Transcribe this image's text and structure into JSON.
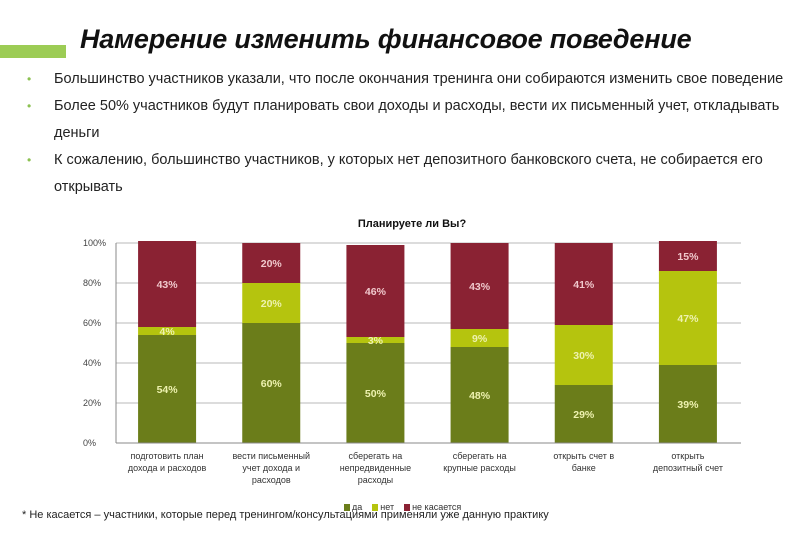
{
  "slide": {
    "title": "Намерение изменить финансовое поведение",
    "accent_color": "#9ccc55",
    "bullets": [
      "Большинство участников указали, что после окончания тренинга они собираются изменить свое поведение",
      "Более 50% участников будут планировать свои  доходы и расходы, вести их письменный учет, откладывать деньги",
      "К сожалению, большинство участников, у которых нет депозитного банковского счета, не собирается  его открывать"
    ],
    "bullet_glyph": "•",
    "footnote": "* Не касается – участники, которые перед тренингом/консультациями применяли уже данную практику"
  },
  "chart_data": {
    "type": "bar",
    "stacked": true,
    "title": "Планируете ли Вы?",
    "xlabel": "",
    "ylabel": "",
    "ylim": [
      0,
      100
    ],
    "y_ticks": [
      "0%",
      "20%",
      "40%",
      "60%",
      "80%",
      "100%"
    ],
    "y_tick_values": [
      0,
      20,
      40,
      60,
      80,
      100
    ],
    "grid": true,
    "legend_position": "bottom",
    "categories": [
      [
        "подготовить план",
        "дохода и расходов"
      ],
      [
        "вести письменный",
        "учет дохода и",
        "расходов"
      ],
      [
        "сберегать на",
        "непредвиденные",
        "расходы"
      ],
      [
        "сберегать на",
        "крупные расходы"
      ],
      [
        "открыть счет в",
        "банке"
      ],
      [
        "открыть",
        "депозитный счет"
      ]
    ],
    "series": [
      {
        "name": "да",
        "color": "#6b7d1a",
        "values": [
          54,
          60,
          50,
          48,
          29,
          39
        ]
      },
      {
        "name": "нет",
        "color": "#b5c40e",
        "values": [
          4,
          20,
          3,
          9,
          30,
          47
        ]
      },
      {
        "name": "не касается",
        "color": "#8a2233",
        "values": [
          43,
          20,
          46,
          43,
          41,
          15
        ]
      }
    ],
    "data_labels": [
      [
        "54%",
        "60%",
        "50%",
        "48%",
        "29%",
        "39%"
      ],
      [
        "4%",
        "20%",
        "3%",
        "9%",
        "30%",
        "47%"
      ],
      [
        "43%",
        "20%",
        "46%",
        "43%",
        "41%",
        "15%"
      ]
    ]
  }
}
